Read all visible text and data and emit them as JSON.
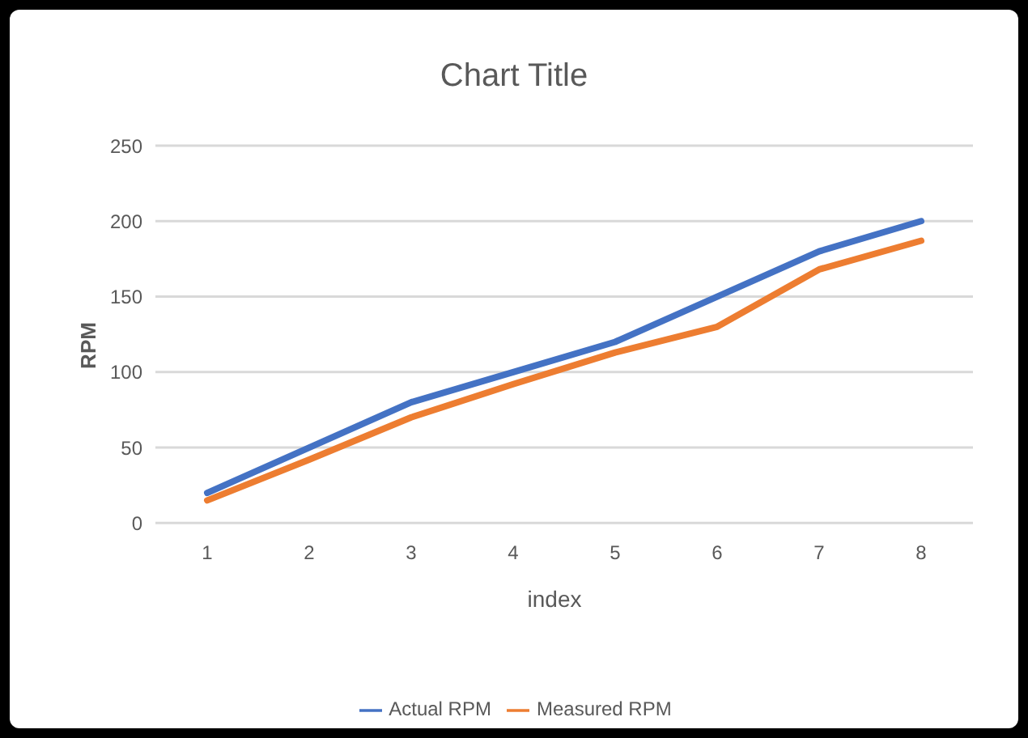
{
  "chart_data": {
    "type": "line",
    "title": "Chart Title",
    "xlabel": "index",
    "ylabel": "RPM",
    "categories": [
      "1",
      "2",
      "3",
      "4",
      "5",
      "6",
      "7",
      "8"
    ],
    "series": [
      {
        "name": "Actual RPM",
        "color": "#4472c4",
        "values": [
          20,
          50,
          80,
          100,
          120,
          150,
          180,
          200
        ]
      },
      {
        "name": "Measured RPM",
        "color": "#ed7d31",
        "values": [
          15,
          42,
          70,
          92,
          113,
          130,
          168,
          187
        ]
      }
    ],
    "ylim": [
      0,
      250
    ],
    "yticks": [
      0,
      50,
      100,
      150,
      200,
      250
    ],
    "grid": "y",
    "legend": "bottom",
    "marker": "none",
    "line_style": "solid"
  }
}
